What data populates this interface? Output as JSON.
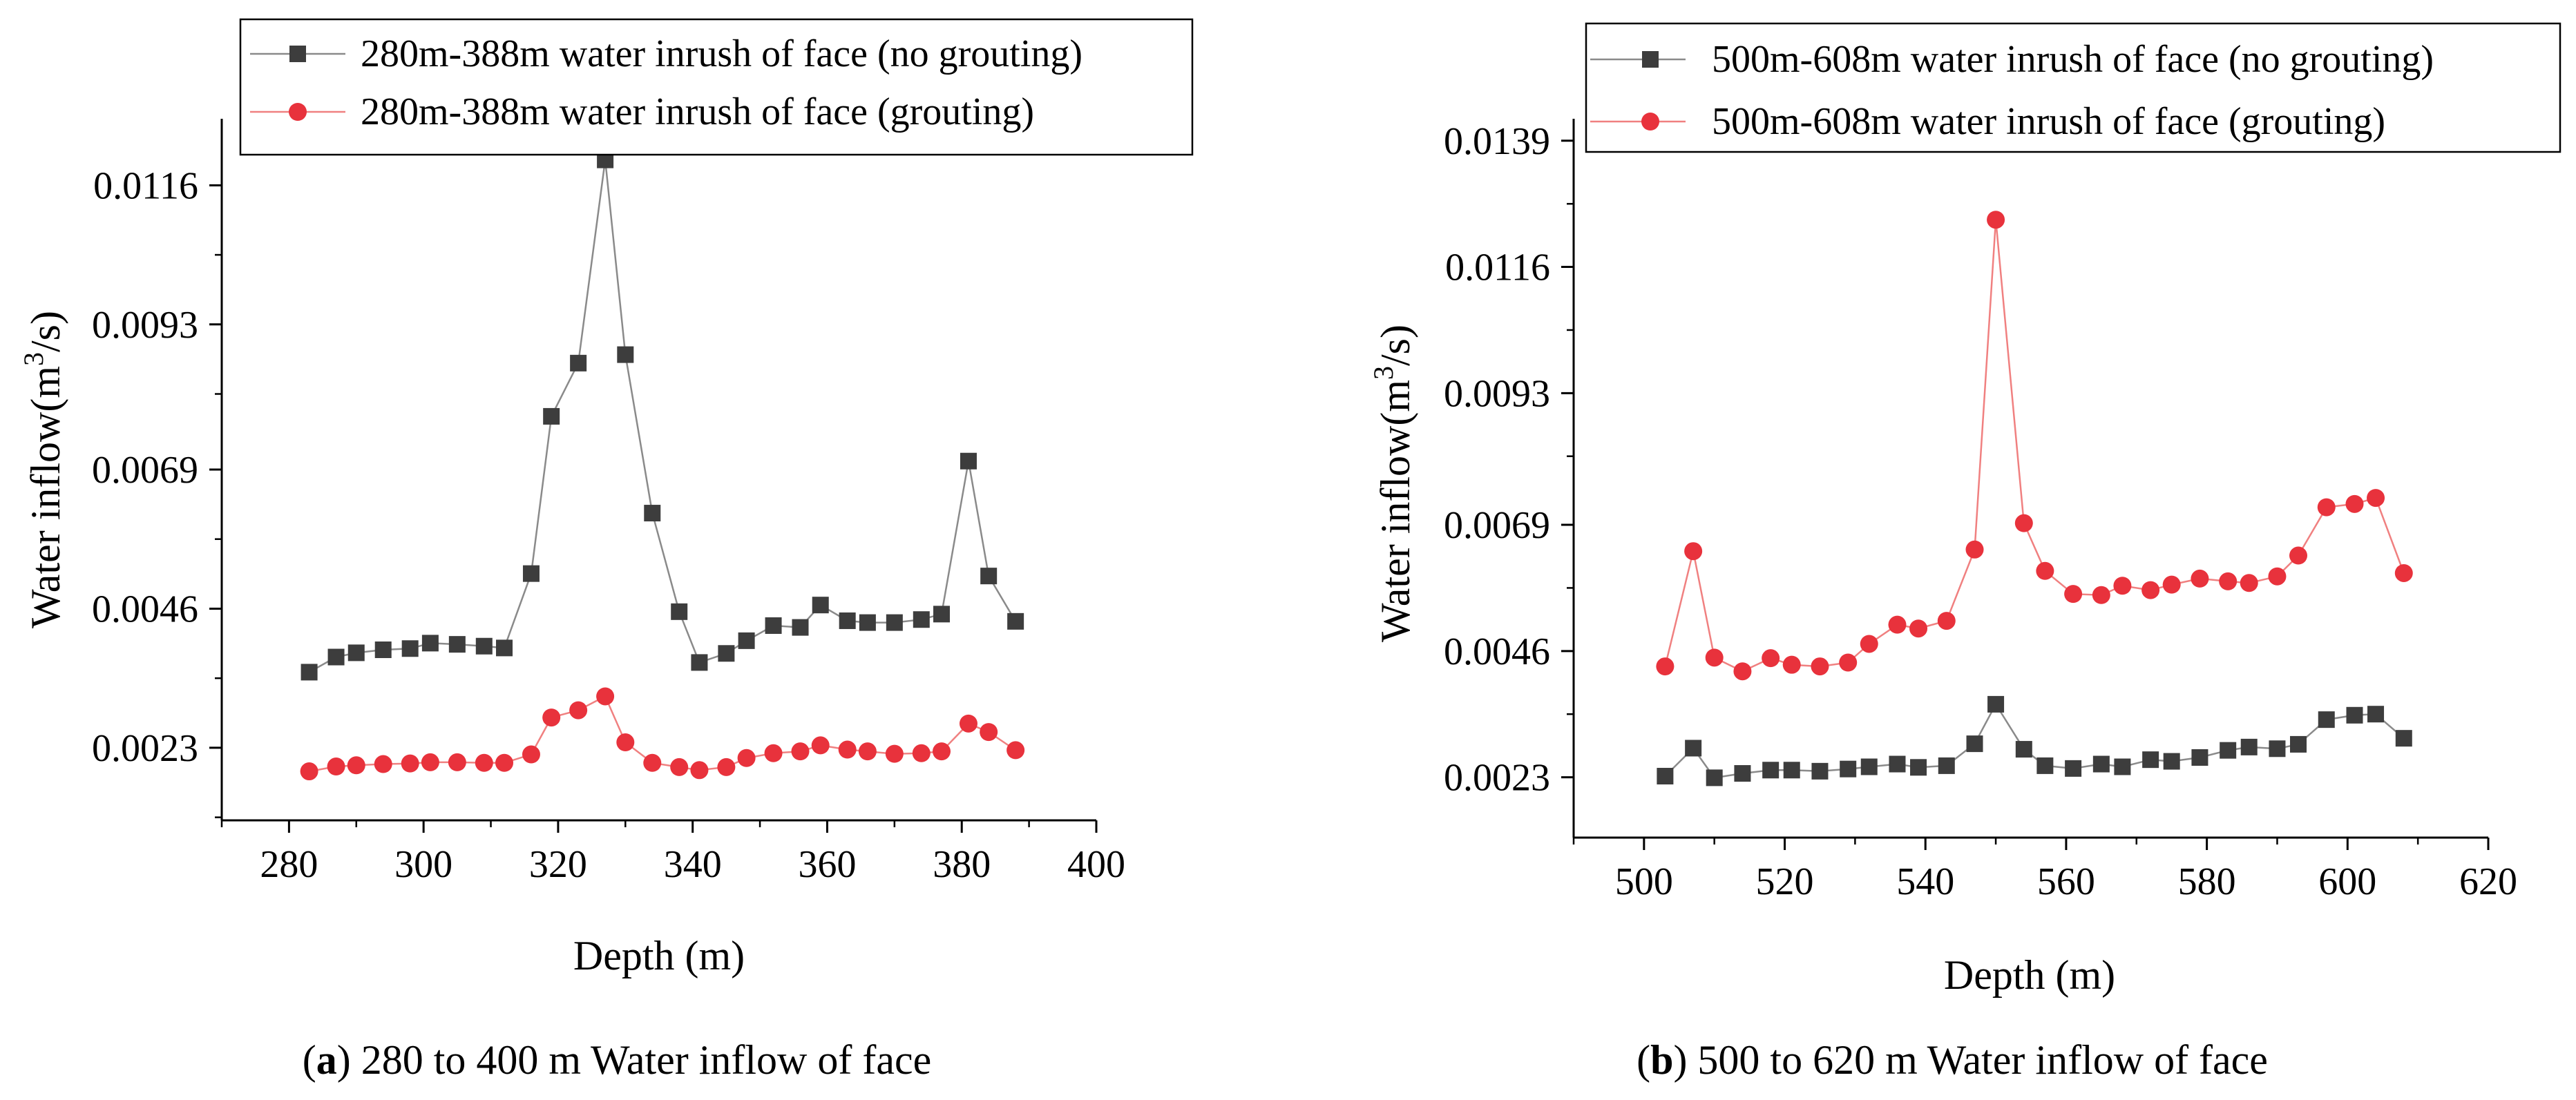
{
  "chart_data": [
    {
      "type": "line",
      "title": "",
      "xlabel": "Depth (m)",
      "ylabel_main": "Water inflow(m",
      "ylabel_sup": "3",
      "ylabel_tail": "/s)",
      "xlim": [
        270,
        400
      ],
      "ylim": [
        0.0011,
        0.0127
      ],
      "xticks": [
        280,
        300,
        320,
        340,
        360,
        380,
        400
      ],
      "yticks": [
        0.0023,
        0.0046,
        0.0069,
        0.0093,
        0.0116
      ],
      "ytick_labels": [
        "0.0023",
        "0.0046",
        "0.0069",
        "0.0093",
        "0.0116"
      ],
      "caption_label": "a",
      "caption_text": " 280 to 400 m Water inflow of face",
      "legend_position": "top-left",
      "series": [
        {
          "name": "280m-388m water inrush of face (no grouting)",
          "color": "#3d3d3d",
          "line_color": "#8a8a8a",
          "marker": "square",
          "x": [
            283,
            287,
            290,
            294,
            298,
            301,
            305,
            309,
            312,
            316,
            319,
            323,
            327,
            330,
            334,
            338,
            341,
            345,
            348,
            352,
            356,
            359,
            363,
            366,
            370,
            374,
            377,
            381,
            384,
            388
          ],
          "values": [
            0.00355,
            0.0038,
            0.00387,
            0.00392,
            0.00394,
            0.00403,
            0.00401,
            0.00398,
            0.00395,
            0.00518,
            0.00778,
            0.00866,
            0.01202,
            0.0088,
            0.00618,
            0.00455,
            0.00371,
            0.00386,
            0.00407,
            0.00432,
            0.00429,
            0.00466,
            0.0044,
            0.00437,
            0.00437,
            0.00442,
            0.00451,
            0.00704,
            0.00514,
            0.00439
          ]
        },
        {
          "name": "280m-388m water inrush of face (grouting)",
          "color": "#e8323c",
          "line_color": "#f08080",
          "marker": "circle",
          "x": [
            283,
            287,
            290,
            294,
            298,
            301,
            305,
            309,
            312,
            316,
            319,
            323,
            327,
            330,
            334,
            338,
            341,
            345,
            348,
            352,
            356,
            359,
            363,
            366,
            370,
            374,
            377,
            381,
            384,
            388
          ],
          "values": [
            0.00191,
            0.00199,
            0.00201,
            0.00203,
            0.00204,
            0.00206,
            0.00206,
            0.00205,
            0.00205,
            0.00219,
            0.0028,
            0.00292,
            0.00315,
            0.00239,
            0.00205,
            0.00198,
            0.00193,
            0.00198,
            0.00213,
            0.00221,
            0.00224,
            0.00234,
            0.00227,
            0.00224,
            0.0022,
            0.00221,
            0.00224,
            0.0027,
            0.00256,
            0.00226
          ]
        }
      ]
    },
    {
      "type": "line",
      "title": "",
      "xlabel": "Depth (m)",
      "ylabel_main": "Water inflow(m",
      "ylabel_sup": "3",
      "ylabel_tail": "/s)",
      "xlim": [
        490,
        620
      ],
      "ylim": [
        0.0012,
        0.0143
      ],
      "xticks": [
        500,
        520,
        540,
        560,
        580,
        600,
        620
      ],
      "yticks": [
        0.0023,
        0.0046,
        0.0069,
        0.0093,
        0.0116,
        0.0139
      ],
      "ytick_labels": [
        "0.0023",
        "0.0046",
        "0.0069",
        "0.0093",
        "0.0116",
        "0.0139"
      ],
      "caption_label": "b",
      "caption_text": " 500 to 620 m Water inflow of face",
      "legend_position": "top-left",
      "series": [
        {
          "name": "500m-608m water inrush of face (no grouting)",
          "color": "#3d3d3d",
          "line_color": "#8a8a8a",
          "marker": "square",
          "x": [
            503,
            507,
            510,
            514,
            518,
            521,
            525,
            529,
            532,
            536,
            539,
            543,
            547,
            550,
            554,
            557,
            561,
            565,
            568,
            572,
            575,
            579,
            583,
            586,
            590,
            593,
            597,
            601,
            604,
            608
          ],
          "values": [
            0.00232,
            0.00283,
            0.00229,
            0.00237,
            0.00243,
            0.00243,
            0.00241,
            0.00245,
            0.00249,
            0.00254,
            0.00248,
            0.00251,
            0.00291,
            0.00363,
            0.00281,
            0.00251,
            0.00246,
            0.00254,
            0.00249,
            0.00262,
            0.00259,
            0.00266,
            0.00279,
            0.00285,
            0.00282,
            0.0029,
            0.00335,
            0.00343,
            0.00345,
            0.00301
          ]
        },
        {
          "name": "500m-608m water inrush of face (grouting)",
          "color": "#e8323c",
          "line_color": "#f08080",
          "marker": "circle",
          "x": [
            503,
            507,
            510,
            514,
            518,
            521,
            525,
            529,
            532,
            536,
            539,
            543,
            547,
            550,
            554,
            557,
            561,
            565,
            568,
            572,
            575,
            579,
            583,
            586,
            590,
            593,
            597,
            601,
            604,
            608
          ],
          "values": [
            0.00432,
            0.00642,
            0.00448,
            0.00423,
            0.00447,
            0.00435,
            0.00432,
            0.00439,
            0.00473,
            0.00508,
            0.00501,
            0.00515,
            0.00645,
            0.01246,
            0.00693,
            0.00606,
            0.00564,
            0.00562,
            0.00579,
            0.00571,
            0.00581,
            0.00592,
            0.00587,
            0.00584,
            0.00596,
            0.00634,
            0.00722,
            0.00728,
            0.00739,
            0.00602
          ]
        }
      ]
    }
  ]
}
